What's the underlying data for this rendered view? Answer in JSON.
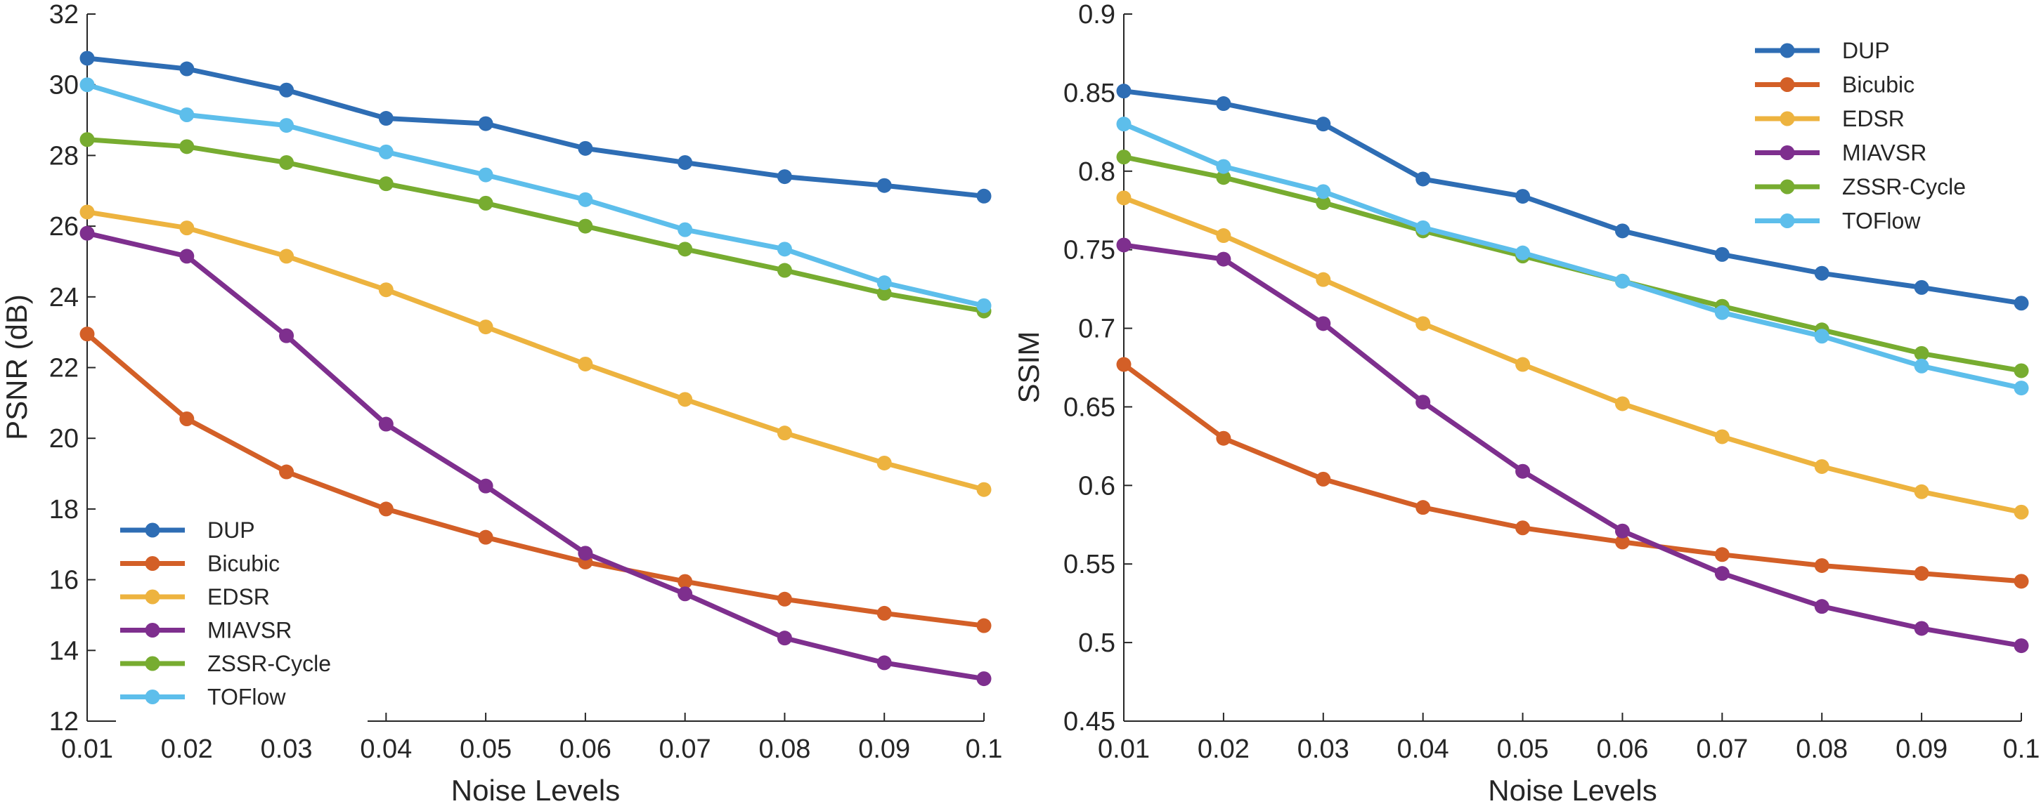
{
  "chart_data": [
    {
      "type": "line",
      "title": "",
      "xlabel": "Noise Levels",
      "ylabel": "PSNR (dB)",
      "xlim": [
        0.01,
        0.1
      ],
      "ylim": [
        12,
        32
      ],
      "x": [
        0.01,
        0.02,
        0.03,
        0.04,
        0.05,
        0.06,
        0.07,
        0.08,
        0.09,
        0.1
      ],
      "x_tick_labels": [
        "0.01",
        "0.02",
        "0.03",
        "0.04",
        "0.05",
        "0.06",
        "0.07",
        "0.08",
        "0.09",
        "0.1"
      ],
      "y_ticks": [
        12,
        14,
        16,
        18,
        20,
        22,
        24,
        26,
        28,
        30,
        32
      ],
      "y_tick_labels": [
        "12",
        "14",
        "16",
        "18",
        "20",
        "22",
        "24",
        "26",
        "28",
        "30",
        "32"
      ],
      "legend_position": "bottom-left",
      "grid": false,
      "series": [
        {
          "name": "DUP",
          "color": "#2E6DB4",
          "values": [
            30.75,
            30.45,
            29.85,
            29.05,
            28.9,
            28.2,
            27.8,
            27.4,
            27.15,
            26.85
          ]
        },
        {
          "name": "Bicubic",
          "color": "#D35F27",
          "values": [
            22.95,
            20.55,
            19.05,
            18.0,
            17.2,
            16.5,
            15.95,
            15.45,
            15.05,
            14.7
          ]
        },
        {
          "name": "EDSR",
          "color": "#EDB33F",
          "values": [
            26.4,
            25.95,
            25.15,
            24.2,
            23.15,
            22.1,
            21.1,
            20.15,
            19.3,
            18.55
          ]
        },
        {
          "name": "MIAVSR",
          "color": "#7E2F8E",
          "values": [
            25.8,
            25.15,
            22.9,
            20.4,
            18.65,
            16.75,
            15.6,
            14.35,
            13.65,
            13.2
          ]
        },
        {
          "name": "ZSSR-Cycle",
          "color": "#77AC30",
          "values": [
            28.45,
            28.25,
            27.8,
            27.2,
            26.65,
            26.0,
            25.35,
            24.75,
            24.1,
            23.6
          ]
        },
        {
          "name": "TOFlow",
          "color": "#5DBEEB",
          "values": [
            30.0,
            29.15,
            28.85,
            28.1,
            27.45,
            26.75,
            25.9,
            25.35,
            24.4,
            23.75
          ]
        }
      ]
    },
    {
      "type": "line",
      "title": "",
      "xlabel": "Noise Levels",
      "ylabel": "SSIM",
      "xlim": [
        0.01,
        0.1
      ],
      "ylim": [
        0.45,
        0.9
      ],
      "x": [
        0.01,
        0.02,
        0.03,
        0.04,
        0.05,
        0.06,
        0.07,
        0.08,
        0.09,
        0.1
      ],
      "x_tick_labels": [
        "0.01",
        "0.02",
        "0.03",
        "0.04",
        "0.05",
        "0.06",
        "0.07",
        "0.08",
        "0.09",
        "0.1"
      ],
      "y_ticks": [
        0.45,
        0.5,
        0.55,
        0.6,
        0.65,
        0.7,
        0.75,
        0.8,
        0.85,
        0.9
      ],
      "y_tick_labels": [
        "0.45",
        "0.5",
        "0.55",
        "0.6",
        "0.65",
        "0.7",
        "0.75",
        "0.8",
        "0.85",
        "0.9"
      ],
      "legend_position": "top-right",
      "grid": false,
      "series": [
        {
          "name": "DUP",
          "color": "#2E6DB4",
          "values": [
            0.851,
            0.843,
            0.83,
            0.795,
            0.784,
            0.762,
            0.747,
            0.735,
            0.726,
            0.716
          ]
        },
        {
          "name": "Bicubic",
          "color": "#D35F27",
          "values": [
            0.677,
            0.63,
            0.604,
            0.586,
            0.573,
            0.564,
            0.556,
            0.549,
            0.544,
            0.539
          ]
        },
        {
          "name": "EDSR",
          "color": "#EDB33F",
          "values": [
            0.783,
            0.759,
            0.731,
            0.703,
            0.677,
            0.652,
            0.631,
            0.612,
            0.596,
            0.583
          ]
        },
        {
          "name": "MIAVSR",
          "color": "#7E2F8E",
          "values": [
            0.753,
            0.744,
            0.703,
            0.653,
            0.609,
            0.571,
            0.544,
            0.523,
            0.509,
            0.498
          ]
        },
        {
          "name": "ZSSR-Cycle",
          "color": "#77AC30",
          "values": [
            0.809,
            0.796,
            0.78,
            0.762,
            0.746,
            0.73,
            0.714,
            0.699,
            0.684,
            0.673
          ]
        },
        {
          "name": "TOFlow",
          "color": "#5DBEEB",
          "values": [
            0.83,
            0.803,
            0.787,
            0.764,
            0.748,
            0.73,
            0.71,
            0.695,
            0.676,
            0.662
          ]
        }
      ]
    }
  ]
}
